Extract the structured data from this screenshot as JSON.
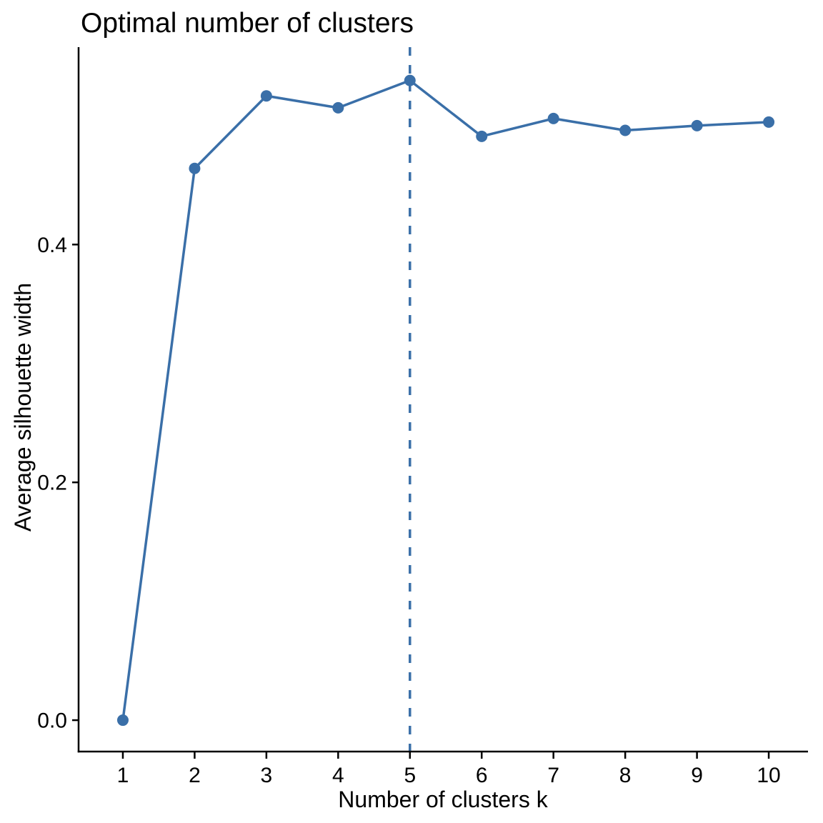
{
  "figure": {
    "background": "#FFFFFF"
  },
  "chart_data": {
    "type": "line",
    "title": "Optimal number of clusters",
    "xlabel": "Number of clusters k",
    "ylabel": "Average silhouette width",
    "x": [
      1,
      2,
      3,
      4,
      5,
      6,
      7,
      8,
      9,
      10
    ],
    "series": [
      {
        "name": "Average silhouette width",
        "values": [
          0.0,
          0.464,
          0.525,
          0.515,
          0.538,
          0.491,
          0.506,
          0.496,
          0.5,
          0.503
        ]
      }
    ],
    "xtick_labels": [
      "1",
      "2",
      "3",
      "4",
      "5",
      "6",
      "7",
      "8",
      "9",
      "10"
    ],
    "xtick_values": [
      1,
      2,
      3,
      4,
      5,
      6,
      7,
      8,
      9,
      10
    ],
    "ytick_labels": [
      "0.0",
      "0.2",
      "0.4"
    ],
    "ytick_values": [
      0.0,
      0.2,
      0.4
    ],
    "xlim": [
      0.383,
      10.547
    ],
    "ylim": [
      -0.0264,
      0.566
    ],
    "vline": {
      "x": 5,
      "style": "dashed",
      "meaning": "optimal-k"
    },
    "optimal_k": 5,
    "grid": false,
    "legend_position": "none",
    "marker": "circle",
    "colors": {
      "line": "#3A6FA8",
      "point": "#3A6FA8",
      "vline": "#3A6FA8",
      "axis": "#000000",
      "text": "#000000",
      "background": "#FFFFFF"
    }
  }
}
